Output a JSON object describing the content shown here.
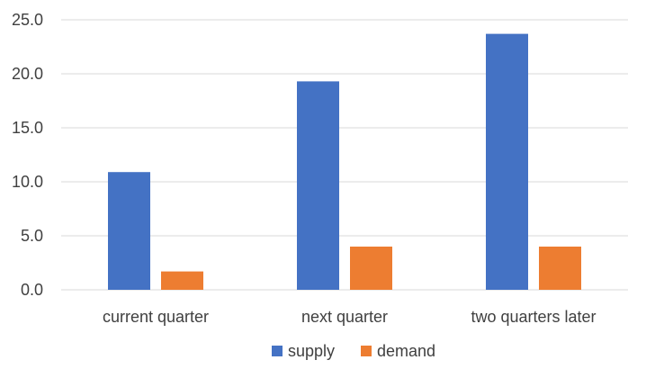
{
  "chart_data": {
    "type": "bar",
    "title": "",
    "xlabel": "",
    "ylabel": "",
    "categories": [
      "current quarter",
      "next quarter",
      "two quarters later"
    ],
    "series": [
      {
        "name": "supply",
        "color": "#4472C4",
        "values": [
          10.9,
          19.3,
          23.7
        ]
      },
      {
        "name": "demand",
        "color": "#ED7D31",
        "values": [
          1.7,
          4.0,
          4.0
        ]
      }
    ],
    "ylim": [
      0,
      25
    ],
    "yticks": [
      0,
      5,
      10,
      15,
      20,
      25
    ],
    "ytick_labels": [
      "0.0",
      "5.0",
      "10.0",
      "15.0",
      "20.0",
      "25.0"
    ],
    "grid": true,
    "grid_color": "#D9D9D9",
    "legend": "bottom-center"
  }
}
